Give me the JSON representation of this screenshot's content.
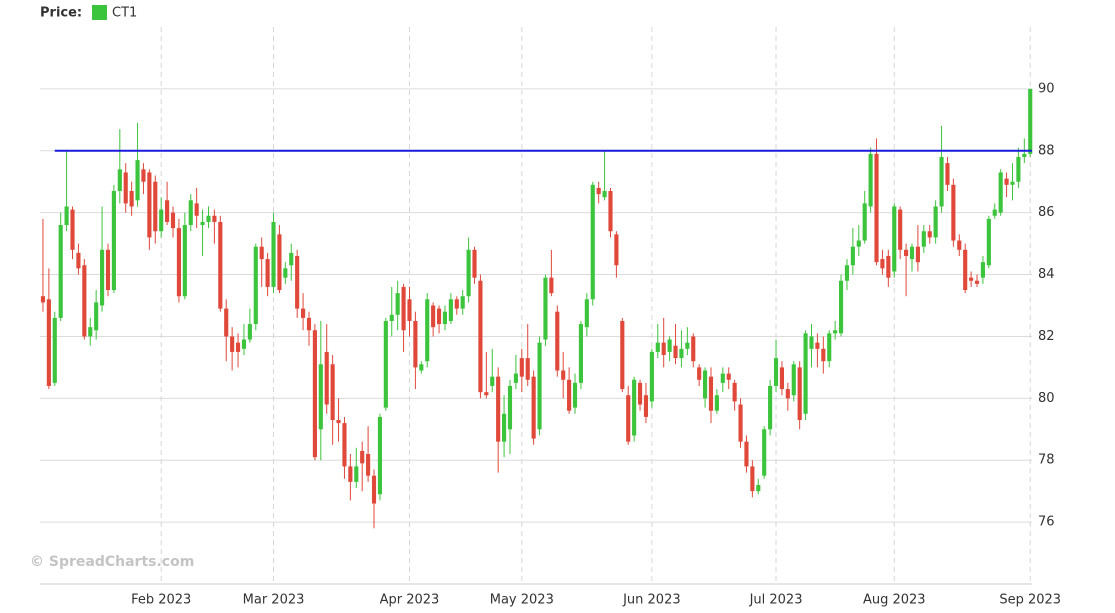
{
  "chart_data": {
    "type": "candlestick",
    "legend_title": "Price:",
    "watermark": "© SpreadCharts.com",
    "series": [
      {
        "name": "CT1",
        "color": "#3cc43c",
        "up_color": "#3cc43c",
        "down_color": "#e0483a",
        "open": [
          83.3,
          83.2,
          80.5,
          82.6,
          85.6,
          86.1,
          84.7,
          84.3,
          82.0,
          82.2,
          83.0,
          84.8,
          83.5,
          86.7,
          87.3,
          86.7,
          86.4,
          87.4,
          87.3,
          87.0,
          85.4,
          86.4,
          86.0,
          85.5,
          83.3,
          85.6,
          86.3,
          85.6,
          85.7,
          85.9,
          85.7,
          82.9,
          82.0,
          81.8,
          81.6,
          81.9,
          82.4,
          84.9,
          84.5,
          83.6,
          85.3,
          83.9,
          84.3,
          84.6,
          82.9,
          82.6,
          82.2,
          79.0,
          81.5,
          81.1,
          79.3,
          79.2,
          77.8,
          77.3,
          78.3,
          78.2,
          77.5,
          76.9,
          79.7,
          82.5,
          82.7,
          83.6,
          83.2,
          82.5,
          80.9,
          81.2,
          83.0,
          82.9,
          82.4,
          82.5,
          83.2,
          82.9,
          83.3,
          84.8,
          83.8,
          80.2,
          80.4,
          80.7,
          78.6,
          79.0,
          80.5,
          81.3,
          81.3,
          80.7,
          79.0,
          81.9,
          83.9,
          82.8,
          80.9,
          80.6,
          79.7,
          80.5,
          82.3,
          83.2,
          86.8,
          86.5,
          86.7,
          85.3,
          82.5,
          80.1,
          78.8,
          80.5,
          80.1,
          79.9,
          81.5,
          81.8,
          81.5,
          81.7,
          81.3,
          81.6,
          82.0,
          81.0,
          80.0,
          80.7,
          79.6,
          80.5,
          80.8,
          80.5,
          79.8,
          78.6,
          77.8,
          77.0,
          77.5,
          79.0,
          80.4,
          81.0,
          80.3,
          80.1,
          81.0,
          79.5,
          81.6,
          81.8,
          81.6,
          81.2,
          82.1,
          82.1,
          83.8,
          84.3,
          84.9,
          85.1,
          86.2,
          87.9,
          84.5,
          84.6,
          84.1,
          86.1,
          84.8,
          84.5,
          84.9,
          84.9,
          85.4,
          85.2,
          86.2,
          87.6,
          86.9,
          85.1,
          84.8,
          83.9,
          83.8,
          83.9,
          84.3,
          85.9,
          86.0,
          87.1,
          86.9,
          87.0,
          87.8,
          87.9
        ],
        "high": [
          85.8,
          84.2,
          82.8,
          86.0,
          88.0,
          86.2,
          85.0,
          84.5,
          82.6,
          83.5,
          86.2,
          85.0,
          86.9,
          88.7,
          87.6,
          87.0,
          88.9,
          87.6,
          87.4,
          87.2,
          86.5,
          87.0,
          86.2,
          85.8,
          86.0,
          86.6,
          86.8,
          86.1,
          86.2,
          86.1,
          85.9,
          83.2,
          82.3,
          82.1,
          82.4,
          82.9,
          85.0,
          85.2,
          84.7,
          86.0,
          85.6,
          84.4,
          85.0,
          84.8,
          83.4,
          82.8,
          82.4,
          82.5,
          82.4,
          81.4,
          80.0,
          79.4,
          78.2,
          78.4,
          78.6,
          79.1,
          77.7,
          79.5,
          82.6,
          83.6,
          83.8,
          83.7,
          83.6,
          82.8,
          81.2,
          83.4,
          83.1,
          83.0,
          83.0,
          83.4,
          83.3,
          83.5,
          85.2,
          84.9,
          84.0,
          81.5,
          81.6,
          81.0,
          80.1,
          80.6,
          81.4,
          81.6,
          82.4,
          80.9,
          82.0,
          84.0,
          84.8,
          83.0,
          81.5,
          81.0,
          80.8,
          82.5,
          83.4,
          87.0,
          87.0,
          88.0,
          86.8,
          85.4,
          82.6,
          80.4,
          80.7,
          80.6,
          80.5,
          81.6,
          82.4,
          82.6,
          82.0,
          82.4,
          82.2,
          82.3,
          82.1,
          81.1,
          81.0,
          81.0,
          80.3,
          81.0,
          81.0,
          80.6,
          80.0,
          78.8,
          78.0,
          77.4,
          79.1,
          80.6,
          81.9,
          81.2,
          80.5,
          81.2,
          81.2,
          82.2,
          82.4,
          82.1,
          82.0,
          82.2,
          82.5,
          84.0,
          84.5,
          85.5,
          85.6,
          86.7,
          88.1,
          88.4,
          84.8,
          84.8,
          86.3,
          86.2,
          85.0,
          85.0,
          85.6,
          85.6,
          85.6,
          86.4,
          88.8,
          87.8,
          87.1,
          85.3,
          85.0,
          84.1,
          84.0,
          84.6,
          85.9,
          86.3,
          87.4,
          87.3,
          87.6,
          88.1,
          88.4,
          90.0
        ],
        "low": [
          82.8,
          80.3,
          80.4,
          82.5,
          85.4,
          84.5,
          84.0,
          81.9,
          81.7,
          81.9,
          82.8,
          83.3,
          83.4,
          86.3,
          86.0,
          85.9,
          86.2,
          86.6,
          84.8,
          85.0,
          85.2,
          85.6,
          85.2,
          83.1,
          83.2,
          85.4,
          85.5,
          84.6,
          85.5,
          85.0,
          82.8,
          81.2,
          80.9,
          81.0,
          81.4,
          81.8,
          82.2,
          83.6,
          83.3,
          83.4,
          83.4,
          83.7,
          83.8,
          82.6,
          82.2,
          81.7,
          78.0,
          78.0,
          79.5,
          78.5,
          78.6,
          77.4,
          76.7,
          77.1,
          77.0,
          77.3,
          75.8,
          76.7,
          79.6,
          82.0,
          82.2,
          81.5,
          82.0,
          80.3,
          80.8,
          81.0,
          82.0,
          82.1,
          82.2,
          82.4,
          82.7,
          82.7,
          83.1,
          83.7,
          80.0,
          80.0,
          80.2,
          77.6,
          78.1,
          78.2,
          80.3,
          80.2,
          80.4,
          78.5,
          78.8,
          81.7,
          83.3,
          80.7,
          80.0,
          79.5,
          79.5,
          80.3,
          82.0,
          83.0,
          86.3,
          86.4,
          85.2,
          83.9,
          80.2,
          78.5,
          78.6,
          79.6,
          79.2,
          79.7,
          81.3,
          81.0,
          81.2,
          81.1,
          81.0,
          81.4,
          81.0,
          80.4,
          79.7,
          79.2,
          79.5,
          80.2,
          80.3,
          79.6,
          78.4,
          77.6,
          76.8,
          76.9,
          77.4,
          78.8,
          80.2,
          80.1,
          79.6,
          79.9,
          79.0,
          79.3,
          81.0,
          81.0,
          80.8,
          81.0,
          81.9,
          82.0,
          83.5,
          84.0,
          84.6,
          85.0,
          86.0,
          84.3,
          84.0,
          83.6,
          83.9,
          84.5,
          83.3,
          84.1,
          84.1,
          84.7,
          85.0,
          85.0,
          86.0,
          86.7,
          84.9,
          84.6,
          83.4,
          83.6,
          83.6,
          83.7,
          84.2,
          85.8,
          85.9,
          86.5,
          86.4,
          86.8,
          87.6,
          87.8
        ],
        "close": [
          83.1,
          80.4,
          82.6,
          85.6,
          86.2,
          84.8,
          84.2,
          82.0,
          82.3,
          83.1,
          84.8,
          83.5,
          86.7,
          87.4,
          86.3,
          86.2,
          87.7,
          87.0,
          85.2,
          85.4,
          86.1,
          85.7,
          85.5,
          83.3,
          85.6,
          86.4,
          85.9,
          85.7,
          85.9,
          85.7,
          82.9,
          82.0,
          81.5,
          81.5,
          81.9,
          82.4,
          84.9,
          84.5,
          83.6,
          85.7,
          83.5,
          84.2,
          84.7,
          82.9,
          82.6,
          82.2,
          78.1,
          81.1,
          79.8,
          79.3,
          79.2,
          77.8,
          77.3,
          77.8,
          77.9,
          77.5,
          76.6,
          79.4,
          82.5,
          82.7,
          83.4,
          82.2,
          82.5,
          81.0,
          81.1,
          83.2,
          82.3,
          82.4,
          82.8,
          83.2,
          82.9,
          83.3,
          84.8,
          83.9,
          80.2,
          80.1,
          80.7,
          78.6,
          79.5,
          80.4,
          80.8,
          80.7,
          80.6,
          78.7,
          81.8,
          83.9,
          83.4,
          80.9,
          80.6,
          79.6,
          80.5,
          82.4,
          83.2,
          86.9,
          86.6,
          86.7,
          85.4,
          84.3,
          80.3,
          78.6,
          80.6,
          79.8,
          79.4,
          81.5,
          81.8,
          81.4,
          81.9,
          81.3,
          81.6,
          81.8,
          81.2,
          80.6,
          80.9,
          79.6,
          80.1,
          80.8,
          80.6,
          79.9,
          78.6,
          77.8,
          77.0,
          77.2,
          79.0,
          80.4,
          81.3,
          80.3,
          80.0,
          81.1,
          79.3,
          82.1,
          82.0,
          81.6,
          81.2,
          82.1,
          82.2,
          83.8,
          84.3,
          84.9,
          85.1,
          86.3,
          87.9,
          84.4,
          84.2,
          83.9,
          86.2,
          84.8,
          84.6,
          84.9,
          84.4,
          85.4,
          85.2,
          86.2,
          87.8,
          86.9,
          85.1,
          84.8,
          83.5,
          83.8,
          83.7,
          84.4,
          85.8,
          86.1,
          87.3,
          86.9,
          87.0,
          87.8,
          87.9,
          90.0
        ]
      }
    ],
    "reference_line": {
      "value": 88,
      "color": "#1a1adc"
    },
    "xlim": [
      -0.5,
      167.3
    ],
    "xticks": [
      {
        "value": 20,
        "label": "Feb 2023"
      },
      {
        "value": 39,
        "label": "Mar 2023"
      },
      {
        "value": 62,
        "label": "Apr 2023"
      },
      {
        "value": 81,
        "label": "May 2023"
      },
      {
        "value": 103,
        "label": "Jun 2023"
      },
      {
        "value": 124,
        "label": "Jul 2023"
      },
      {
        "value": 144,
        "label": "Aug 2023"
      },
      {
        "value": 167,
        "label": "Sep 2023"
      }
    ],
    "ylim": [
      74,
      92
    ],
    "yticks": [
      76,
      78,
      80,
      82,
      84,
      86,
      88,
      90
    ],
    "grid": true
  }
}
